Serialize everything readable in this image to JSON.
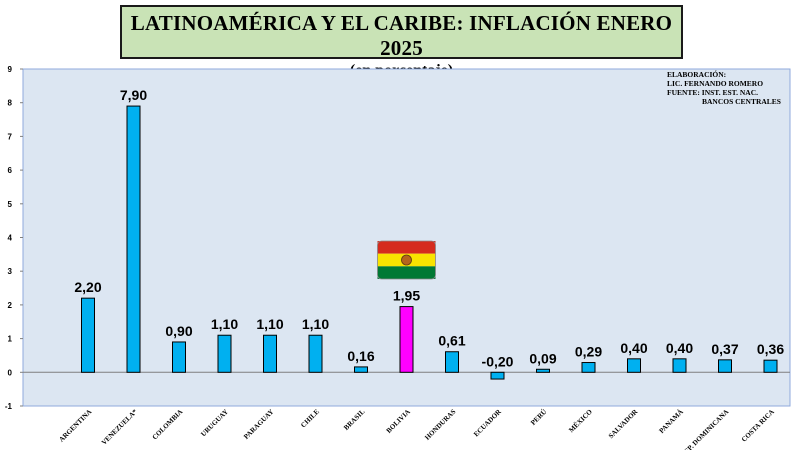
{
  "title": "LATINOAMÉRICA Y EL CARIBE: INFLACIÓN ENERO 2025",
  "subtitle": "(en porcentaje)",
  "credits": {
    "line1": "ELABORACIÓN:",
    "line2": "LIC. FERNANDO ROMERO",
    "line3": "FUENTE: INST. EST. NAC.",
    "line4": "BANCOS CENTRALES"
  },
  "colors": {
    "bar": "#00b0f0",
    "highlight": "#ff00ff",
    "plot_bg": "#dce6f2",
    "title_bg": "#c9e3b6"
  },
  "chart_data": {
    "type": "bar",
    "title": "LATINOAMÉRICA Y EL CARIBE: INFLACIÓN ENERO 2025",
    "subtitle": "(en porcentaje)",
    "xlabel": "",
    "ylabel": "",
    "ylim": [
      -1,
      9
    ],
    "yticks": [
      -1,
      0,
      1,
      2,
      3,
      4,
      5,
      6,
      7,
      8,
      9
    ],
    "grid": false,
    "highlight": "BOLIVIA",
    "categories": [
      "ARGENTINA",
      "VENEZUELA*",
      "COLOMBIA",
      "URUGUAY",
      "PARAGUAY",
      "CHILE",
      "BRASIL",
      "BOLIVIA",
      "HONDURAS",
      "ECUADOR",
      "PERÚ",
      "MÉXICO",
      "SALVADOR",
      "PANAMÁ",
      "REP. DOMINICANA",
      "COSTA RICA"
    ],
    "values": [
      2.2,
      7.9,
      0.9,
      1.1,
      1.1,
      1.1,
      0.16,
      1.95,
      0.61,
      -0.2,
      0.09,
      0.29,
      0.4,
      0.4,
      0.37,
      0.36
    ],
    "value_labels": [
      "2,20",
      "7,90",
      "0,90",
      "1,10",
      "1,10",
      "1,10",
      "0,16",
      "1,95",
      "0,61",
      "-0,20",
      "0,09",
      "0,29",
      "0,40",
      "0,40",
      "0,37",
      "0,36"
    ]
  }
}
